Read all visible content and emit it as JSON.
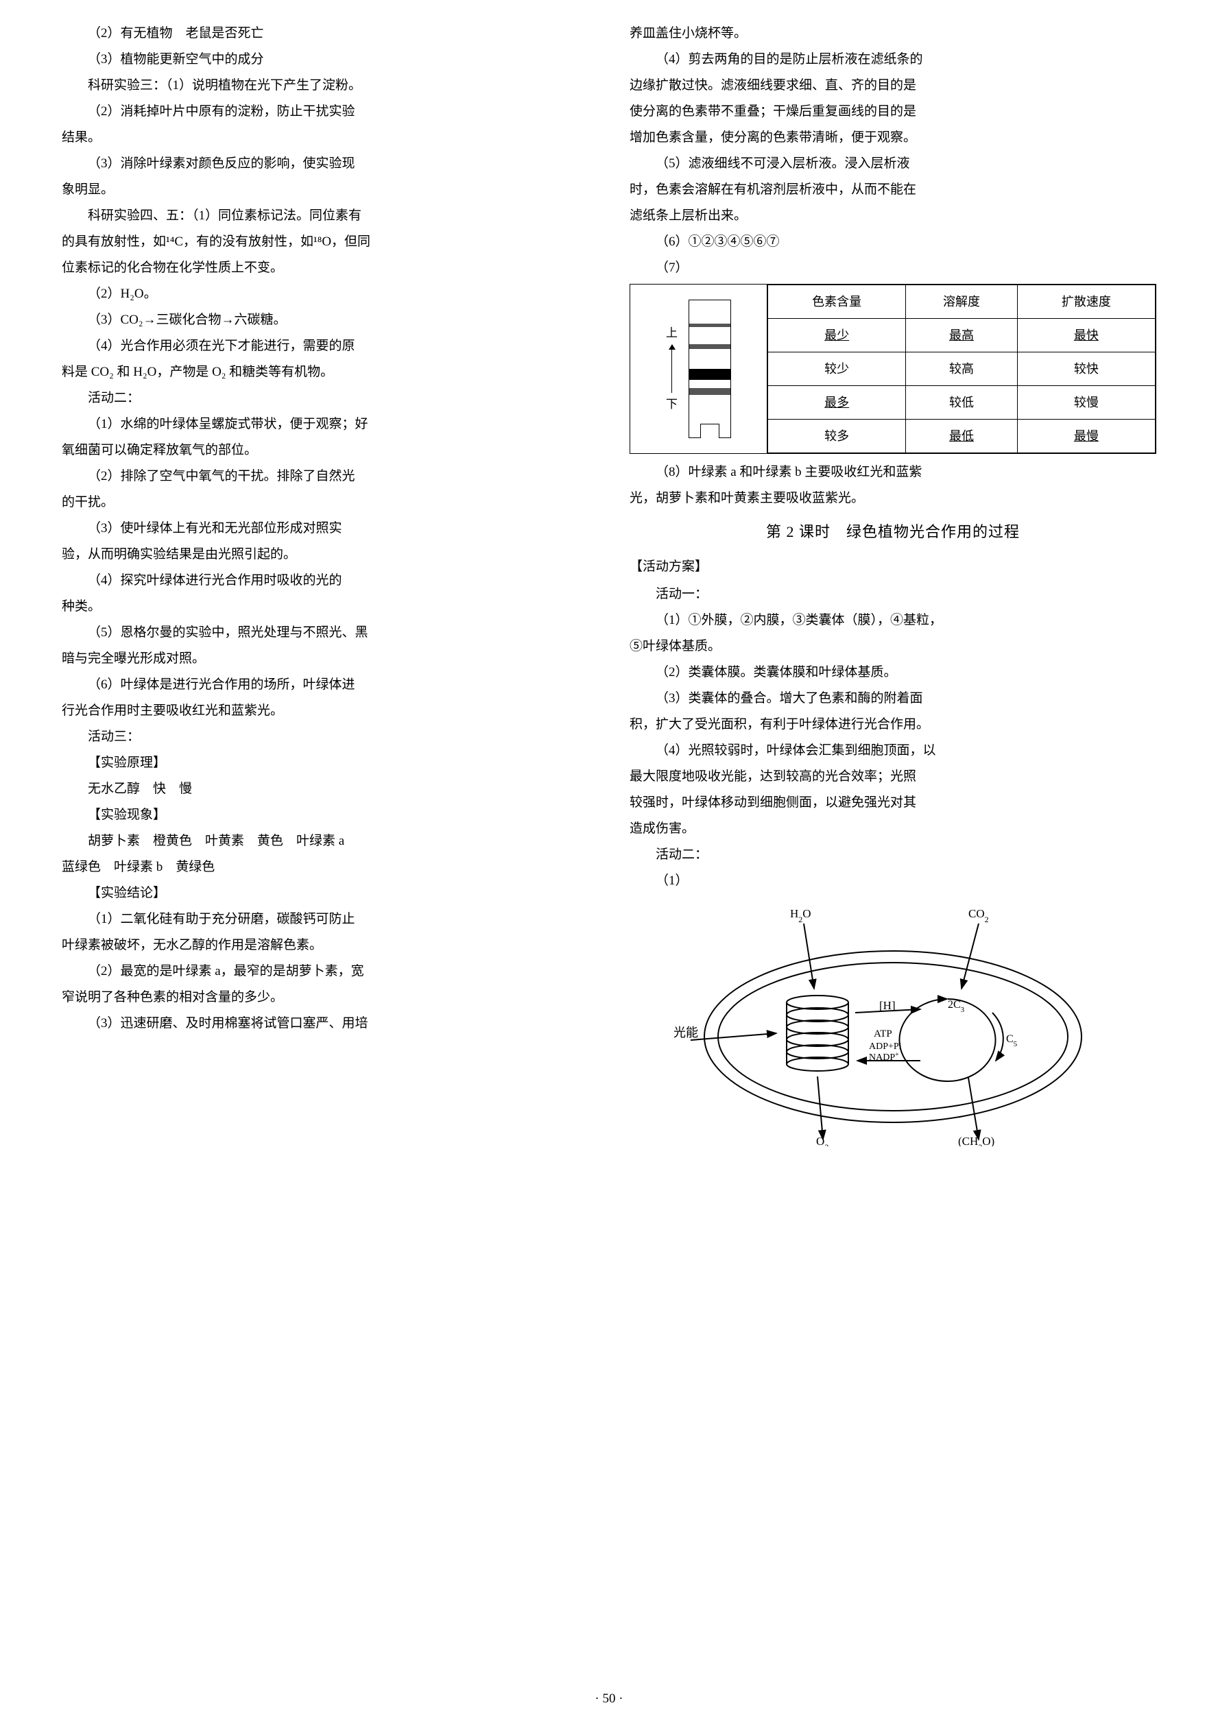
{
  "left": {
    "p01": "（2）有无植物　老鼠是否死亡",
    "p02": "（3）植物能更新空气中的成分",
    "p03": "科研实验三：（1）说明植物在光下产生了淀粉。",
    "p04a": "（2）消耗掉叶片中原有的淀粉，防止干扰实验",
    "p04b": "结果。",
    "p05a": "（3）消除叶绿素对颜色反应的影响，使实验现",
    "p05b": "象明显。",
    "p06a": "科研实验四、五：（1）同位素标记法。同位素有",
    "p06b": "的具有放射性，如¹⁴C，有的没有放射性，如¹⁸O，但同",
    "p06c": "位素标记的化合物在化学性质上不变。",
    "p07": "（2）H₂O。",
    "p08": "（3）CO₂→三碳化合物→六碳糖。",
    "p09a": "（4）光合作用必须在光下才能进行，需要的原",
    "p09b": "料是 CO₂ 和 H₂O，产物是 O₂ 和糖类等有机物。",
    "act2": "活动二：",
    "p10a": "（1）水绵的叶绿体呈螺旋式带状，便于观察；好",
    "p10b": "氧细菌可以确定释放氧气的部位。",
    "p11a": "（2）排除了空气中氧气的干扰。排除了自然光",
    "p11b": "的干扰。",
    "p12a": "（3）使叶绿体上有光和无光部位形成对照实",
    "p12b": "验，从而明确实验结果是由光照引起的。",
    "p13a": "（4）探究叶绿体进行光合作用时吸收的光的",
    "p13b": "种类。",
    "p14a": "（5）恩格尔曼的实验中，照光处理与不照光、黑",
    "p14b": "暗与完全曝光形成对照。",
    "p15a": "（6）叶绿体是进行光合作用的场所，叶绿体进",
    "p15b": "行光合作用时主要吸收红光和蓝紫光。",
    "act3": "活动三：",
    "br1": "【实验原理】",
    "p16": "无水乙醇　快　慢",
    "br2": "【实验现象】",
    "p17a": "胡萝卜素　橙黄色　叶黄素　黄色　叶绿素 a",
    "p17b": "蓝绿色　叶绿素 b　黄绿色",
    "br3": "【实验结论】",
    "p18a": "（1）二氧化硅有助于充分研磨，碳酸钙可防止",
    "p18b": "叶绿素被破坏，无水乙醇的作用是溶解色素。",
    "p19a": "（2）最宽的是叶绿素 a，最窄的是胡萝卜素，宽",
    "p19b": "窄说明了各种色素的相对含量的多少。",
    "p20": "（3）迅速研磨、及时用棉塞将试管口塞严、用培"
  },
  "right": {
    "p01": "养皿盖住小烧杯等。",
    "p02a": "（4）剪去两角的目的是防止层析液在滤纸条的",
    "p02b": "边缘扩散过快。滤液细线要求细、直、齐的目的是",
    "p02c": "使分离的色素带不重叠；干燥后重复画线的目的是",
    "p02d": "增加色素含量，使分离的色素带清晰，便于观察。",
    "p03a": "（5）滤液细线不可浸入层析液。浸入层析液",
    "p03b": "时，色素会溶解在有机溶剂层析液中，从而不能在",
    "p03c": "滤纸条上层析出来。",
    "p04": "（6）①②③④⑤⑥⑦",
    "p05": "（7）",
    "fig": {
      "top_label": "上",
      "bottom_label": "下",
      "headers": [
        "色素含量",
        "溶解度",
        "扩散速度"
      ],
      "rows": [
        [
          "最少",
          "最高",
          "最快"
        ],
        [
          "较少",
          "较高",
          "较快"
        ],
        [
          "最多",
          "较低",
          "较慢"
        ],
        [
          "较多",
          "最低",
          "最慢"
        ]
      ],
      "underline": [
        [
          0,
          0
        ],
        [
          0,
          1
        ],
        [
          0,
          2
        ],
        [
          2,
          0
        ],
        [
          3,
          1
        ],
        [
          3,
          2
        ]
      ],
      "band_colors": [
        "#555555",
        "#555555",
        "#000000",
        "#555555"
      ],
      "border_color": "#000000",
      "background": "#ffffff"
    },
    "p06a": "（8）叶绿素 a 和叶绿素 b 主要吸收红光和蓝紫",
    "p06b": "光，胡萝卜素和叶黄素主要吸收蓝紫光。",
    "lesson": "第 2 课时　绿色植物光合作用的过程",
    "scheme": "【活动方案】",
    "act1": "活动一：",
    "p07a": "（1）①外膜，②内膜，③类囊体（膜），④基粒，",
    "p07b": "⑤叶绿体基质。",
    "p08": "（2）类囊体膜。类囊体膜和叶绿体基质。",
    "p09a": "（3）类囊体的叠合。增大了色素和酶的附着面",
    "p09b": "积，扩大了受光面积，有利于叶绿体进行光合作用。",
    "p10a": "（4）光照较弱时，叶绿体会汇集到细胞顶面，以",
    "p10b": "最大限度地吸收光能，达到较高的光合效率；光照",
    "p10c": "较强时，叶绿体移动到细胞侧面，以避免强光对其",
    "p10d": "造成伤害。",
    "act2": "活动二：",
    "p11": "（1）",
    "chloro": {
      "labels": {
        "h2o": "H₂O",
        "co2": "CO₂",
        "light": "光能",
        "H": "[H]",
        "atp": "ATP",
        "adp": "ADP+Pi",
        "nadp": "NADP⁺",
        "c3": "2C₃",
        "c5": "C₅",
        "o2": "O₂",
        "ch2o": "(CH₂O)"
      },
      "colors": {
        "stroke": "#000000",
        "fill": "#ffffff",
        "text": "#000000"
      }
    }
  },
  "page_number": "· 50 ·"
}
